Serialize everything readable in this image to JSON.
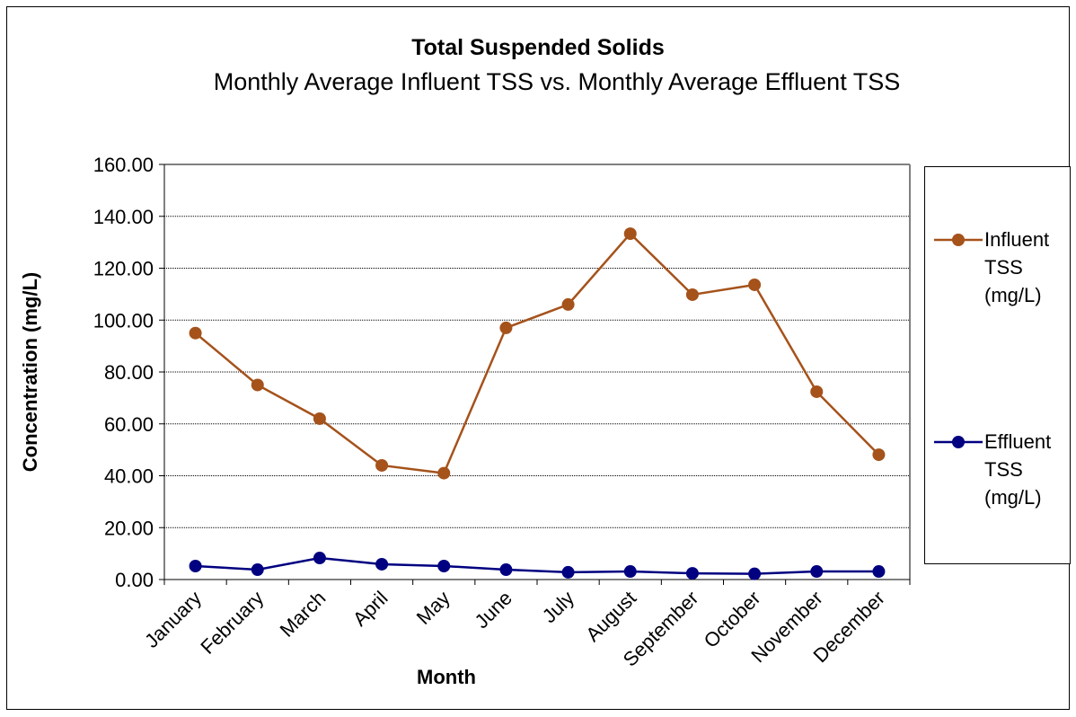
{
  "chart_data": {
    "type": "line",
    "title": "Total Suspended Solids",
    "subtitle": "Monthly Average Influent TSS vs. Monthly Average Effluent TSS",
    "xlabel": "Month",
    "ylabel": "Concentration (mg/L)",
    "categories": [
      "January",
      "February",
      "March",
      "April",
      "May",
      "June",
      "July",
      "August",
      "September",
      "October",
      "November",
      "December"
    ],
    "series": [
      {
        "name": "Influent TSS (mg/L)",
        "color": "#a5521b",
        "values": [
          95,
          75,
          62,
          44,
          41,
          97,
          106,
          133.3,
          109.8,
          113.6,
          72.4,
          48.1
        ]
      },
      {
        "name": "Effluent TSS (mg/L)",
        "color": "#000080",
        "values": [
          5.2,
          3.8,
          8.3,
          5.9,
          5.2,
          3.8,
          2.8,
          3.1,
          2.4,
          2.2,
          3.1,
          3.1
        ]
      }
    ],
    "ylim": [
      0,
      160
    ],
    "yticks": [
      {
        "value": 0,
        "label": "0.00"
      },
      {
        "value": 20,
        "label": "20.00"
      },
      {
        "value": 40,
        "label": "40.00"
      },
      {
        "value": 60,
        "label": "60.00"
      },
      {
        "value": 80,
        "label": "80.00"
      },
      {
        "value": 100,
        "label": "100.00"
      },
      {
        "value": 120,
        "label": "120.00"
      },
      {
        "value": 140,
        "label": "140.00"
      },
      {
        "value": 160,
        "label": "160.00"
      }
    ],
    "grid": true,
    "legend": "right"
  }
}
